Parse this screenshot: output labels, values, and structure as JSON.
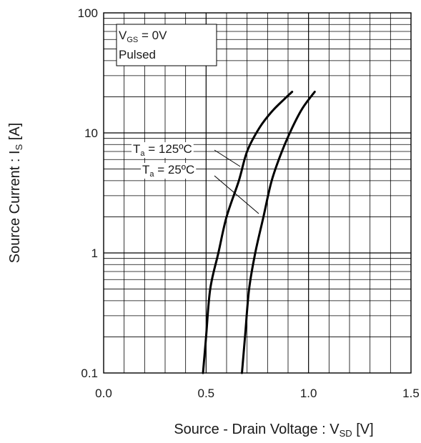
{
  "chart_data": {
    "type": "line",
    "title": "",
    "xlabel": {
      "main": "Source - Drain Voltage : V",
      "sub": "SD",
      "unit": " [V]"
    },
    "ylabel": {
      "main": "Source Current : I",
      "sub": "S",
      "unit": " [A]"
    },
    "xlim": [
      0.0,
      1.5
    ],
    "ylim": [
      0.1,
      100
    ],
    "yscale": "log",
    "grid": true,
    "x_ticks": [
      "0.0",
      "0.5",
      "1.0",
      "1.5"
    ],
    "y_ticks": [
      "0.1",
      "1",
      "10",
      "100"
    ],
    "condition_box": {
      "line1_main": "V",
      "line1_sub": "GS",
      "line1_rest": " = 0V",
      "line2": "Pulsed"
    },
    "series": [
      {
        "name": "125ºC",
        "label_main": "T",
        "label_sub": "a",
        "label_rest": " = 125ºC",
        "x": [
          0.485,
          0.5,
          0.52,
          0.56,
          0.6,
          0.66,
          0.7,
          0.76,
          0.82,
          0.88,
          0.92
        ],
        "y": [
          0.1,
          0.2,
          0.5,
          1.0,
          2.0,
          4.0,
          7.0,
          11.0,
          15.0,
          19.0,
          22.0
        ]
      },
      {
        "name": "25ºC",
        "label_main": "T",
        "label_sub": "a",
        "label_rest": " = 25ºC",
        "x": [
          0.675,
          0.69,
          0.71,
          0.74,
          0.78,
          0.82,
          0.87,
          0.92,
          0.97,
          1.03
        ],
        "y": [
          0.1,
          0.2,
          0.5,
          1.0,
          2.0,
          4.0,
          7.0,
          11.0,
          16.0,
          22.0
        ]
      }
    ]
  }
}
